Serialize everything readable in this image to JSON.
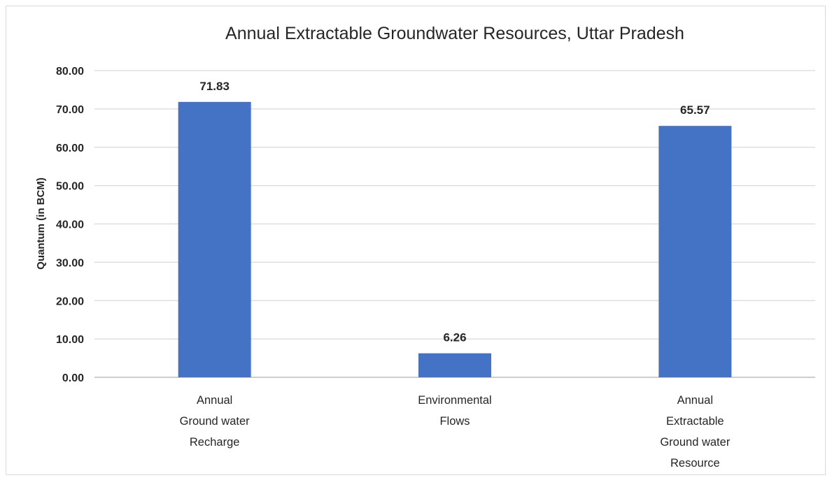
{
  "chart_data": {
    "type": "bar",
    "title": "Annual Extractable Groundwater Resources, Uttar Pradesh",
    "xlabel": "",
    "ylabel": "Quantum (in BCM)",
    "categories": [
      [
        "Annual",
        "Ground water",
        "Recharge"
      ],
      [
        "Environmental",
        "Flows"
      ],
      [
        "Annual",
        "Extractable",
        "Ground water",
        "Resource"
      ]
    ],
    "values": [
      71.83,
      6.26,
      65.57
    ],
    "data_labels": [
      "71.83",
      "6.26",
      "65.57"
    ],
    "ylim": [
      0,
      80
    ],
    "yticks": [
      "0.00",
      "10.00",
      "20.00",
      "30.00",
      "40.00",
      "50.00",
      "60.00",
      "70.00",
      "80.00"
    ],
    "grid": true,
    "legend": "none",
    "bar_color": "#4472c4",
    "grid_color": "#d9d9d9"
  }
}
